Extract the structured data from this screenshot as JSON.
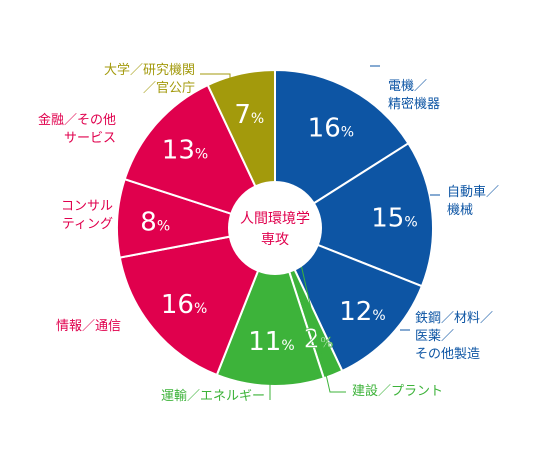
{
  "chart_data": {
    "type": "pie",
    "title": "",
    "center_label": [
      "人間環境学",
      "専攻"
    ],
    "series": [
      {
        "name": "電機／精密機器",
        "label_lines": [
          "電機／",
          "精密機器"
        ],
        "value": 16,
        "display": "16%",
        "color": "#0d55a4"
      },
      {
        "name": "自動車／機械",
        "label_lines": [
          "自動車／",
          "機械"
        ],
        "value": 15,
        "display": "15%",
        "color": "#0d55a4"
      },
      {
        "name": "鉄鋼／材料／医薬／その他製造",
        "label_lines": [
          "鉄鋼／材料／",
          "医薬／",
          "その他製造"
        ],
        "value": 12,
        "display": "12%",
        "color": "#0d55a4"
      },
      {
        "name": "建設／プラント",
        "label_lines": [
          "建設／プラント"
        ],
        "value": 2,
        "display": "2%",
        "color": "#3db33a"
      },
      {
        "name": "運輸／エネルギー",
        "label_lines": [
          "運輸／エネルギー"
        ],
        "value": 11,
        "display": "11%",
        "color": "#3db33a"
      },
      {
        "name": "情報／通信",
        "label_lines": [
          "情報／通信"
        ],
        "value": 16,
        "display": "16%",
        "color": "#e0004d"
      },
      {
        "name": "コンサルティング",
        "label_lines": [
          "コンサル",
          "ティング"
        ],
        "value": 8,
        "display": "8%",
        "color": "#e0004d"
      },
      {
        "name": "金融／その他サービス",
        "label_lines": [
          "金融／その他",
          "サービス"
        ],
        "value": 13,
        "display": "13%",
        "color": "#e0004d"
      },
      {
        "name": "大学／研究機関／官公庁",
        "label_lines": [
          "大学／研究機関",
          "／官公庁"
        ],
        "value": 7,
        "display": "7%",
        "color": "#a39a0c"
      }
    ]
  }
}
